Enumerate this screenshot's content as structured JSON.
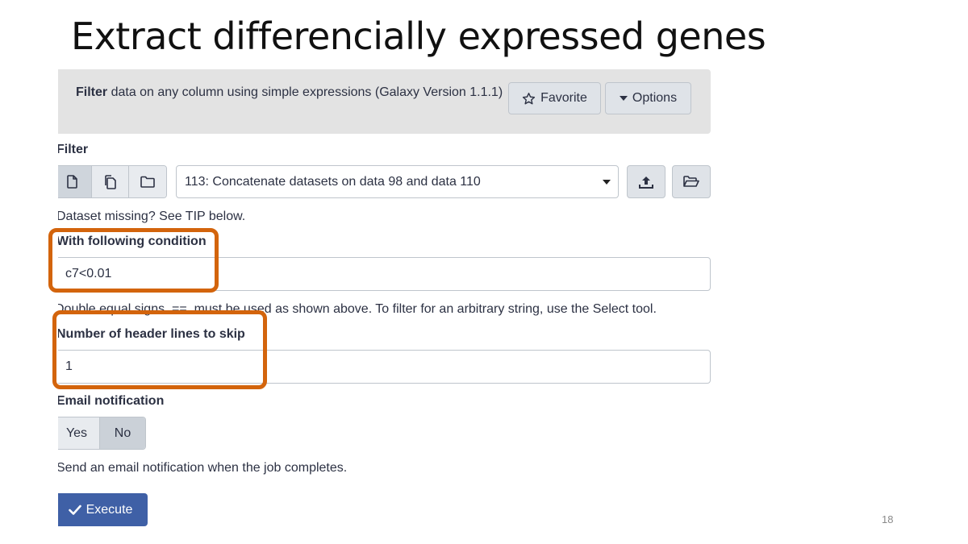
{
  "slide": {
    "title": "Extract differencially expressed genes",
    "page_number": "18"
  },
  "tool": {
    "name": "Filter",
    "description": " data on any column using simple expressions (Galaxy Version 1.1.1)",
    "favorite_label": "Favorite",
    "options_label": "Options"
  },
  "input_dataset": {
    "label": "Filter",
    "selected": "113: Concatenate datasets on data 98 and data 110",
    "help": "Dataset missing? See TIP below."
  },
  "condition": {
    "label": "With following condition",
    "value": "c7<0.01",
    "help": "Double equal signs, ==, must be used as shown above. To filter for an arbitrary string, use the Select tool."
  },
  "header_lines": {
    "label": "Number of header lines to skip",
    "value": "1"
  },
  "email": {
    "label": "Email notification",
    "yes_label": "Yes",
    "no_label": "No",
    "selected": "No",
    "help": "Send an email notification when the job completes."
  },
  "execute_label": "Execute",
  "colors": {
    "highlight": "#d3640c",
    "execute_bg": "#3f60a6",
    "header_bg": "#e3e3e3"
  }
}
